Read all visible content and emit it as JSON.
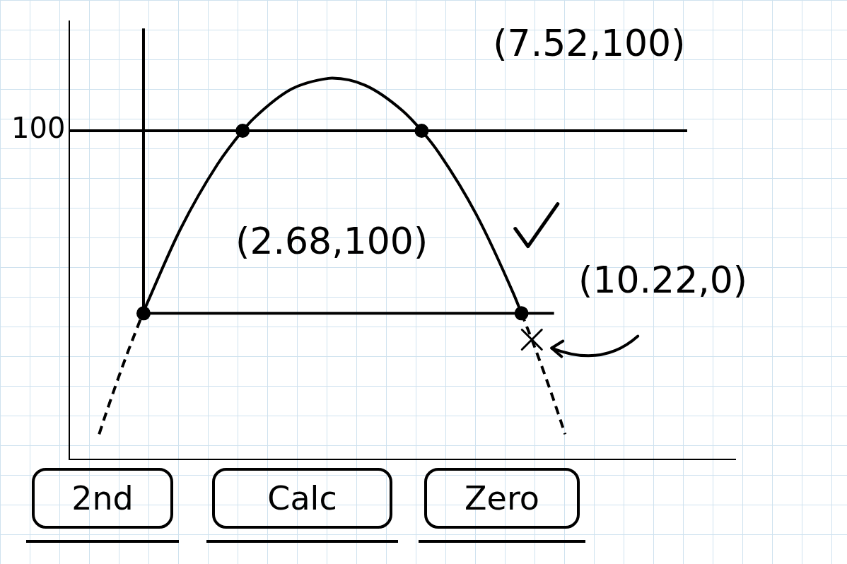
{
  "chart_data": {
    "type": "line",
    "xlim": [
      -2,
      16
    ],
    "ylim": [
      -80,
      160
    ],
    "xticks": [],
    "yticks": [
      100
    ],
    "tick_labels": "y",
    "grid": false,
    "series": [
      {
        "type": "line",
        "color": "#000000",
        "line_style": "solid",
        "x": [
          0,
          1,
          2,
          2.68,
          3,
          4,
          5,
          5.1,
          6,
          7,
          7.52,
          8,
          9,
          10,
          10.22
        ],
        "values": [
          1.0,
          46.2,
          81.6,
          100,
          107.1,
          122.8,
          128.7,
          128.8,
          124.8,
          111.0,
          100,
          87.5,
          54.1,
          10.9,
          0
        ]
      },
      {
        "type": "line",
        "color": "#000000",
        "line_style": "dashed",
        "x": [
          -1.2,
          -1,
          -0.5,
          0
        ],
        "values": [
          -66.2,
          -54,
          -25.3,
          1.0
        ]
      },
      {
        "type": "line",
        "color": "#000000",
        "line_style": "dashed",
        "x": [
          10.22,
          10.5,
          11,
          11.4
        ],
        "values": [
          0,
          -14.4,
          -42.2,
          -66.2
        ]
      },
      {
        "type": "line",
        "color": "#000000",
        "line_style": "solid",
        "x": [
          -2,
          14.7
        ],
        "values": [
          100,
          100
        ]
      },
      {
        "type": "line",
        "color": "#000000",
        "line_style": "solid",
        "x": [
          0,
          0
        ],
        "values": [
          0,
          156
        ]
      },
      {
        "type": "line",
        "color": "#000000",
        "line_style": "solid",
        "x": [
          0,
          11.1
        ],
        "values": [
          0,
          0
        ]
      },
      {
        "type": "scatter",
        "color": "#000000",
        "marker": "circle",
        "x": [
          2.68,
          7.52,
          10.22,
          0
        ],
        "values": [
          100,
          100,
          0,
          0
        ]
      }
    ],
    "annotations": [
      {
        "text": "(7.52,100)",
        "x": 7.52,
        "y": 100
      },
      {
        "text": "(2.68,100)",
        "x": 2.68,
        "y": 100
      },
      {
        "text": "(10.22,0)",
        "x": 10.22,
        "y": 0
      }
    ],
    "buttons": [
      "2nd",
      "Calc",
      "Zero"
    ]
  }
}
